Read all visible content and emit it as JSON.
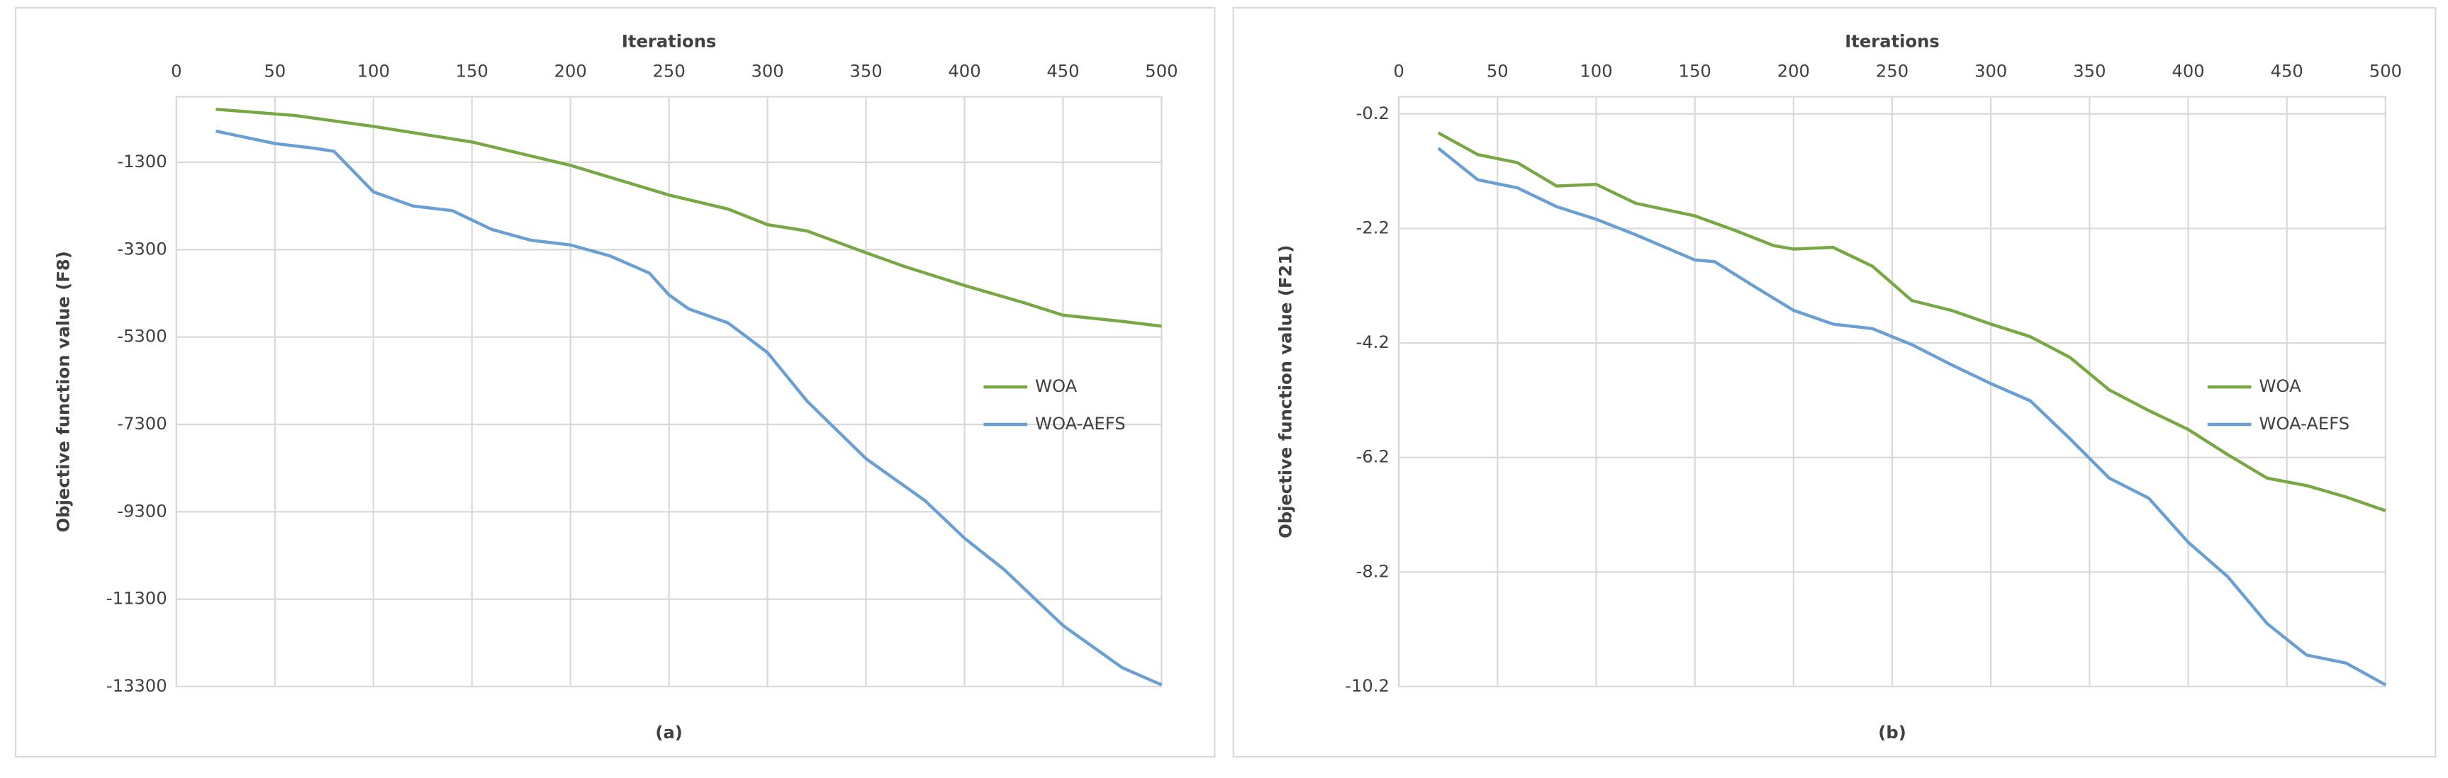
{
  "chart_data": [
    {
      "type": "line",
      "title": "Iterations",
      "ylabel": "Objective function value (F8)",
      "label": "(a)",
      "xlim": [
        0,
        500
      ],
      "xticks": [
        0,
        50,
        100,
        150,
        200,
        250,
        300,
        350,
        400,
        450,
        500
      ],
      "ylim": [
        -13300,
        200
      ],
      "yticks": [
        -1300,
        -3300,
        -5300,
        -7300,
        -9300,
        -11300,
        -13300
      ],
      "grid": true,
      "legend": "right",
      "series": [
        {
          "name": "WOA",
          "color": "#77a844",
          "x": [
            20,
            50,
            60,
            100,
            150,
            200,
            250,
            280,
            300,
            320,
            350,
            370,
            400,
            430,
            450,
            480,
            500
          ],
          "values": [
            -86,
            -193,
            -229,
            -479,
            -836,
            -1371,
            -2050,
            -2371,
            -2728,
            -2871,
            -3371,
            -3692,
            -4120,
            -4513,
            -4800,
            -4941,
            -5050
          ]
        },
        {
          "name": "WOA-AEFS",
          "color": "#6a9fd4",
          "x": [
            20,
            50,
            70,
            80,
            100,
            120,
            140,
            160,
            180,
            200,
            220,
            240,
            250,
            260,
            280,
            300,
            320,
            350,
            380,
            400,
            420,
            450,
            480,
            500
          ],
          "values": [
            -586,
            -871,
            -979,
            -1050,
            -1978,
            -2300,
            -2407,
            -2836,
            -3085,
            -3192,
            -3442,
            -3835,
            -4335,
            -4656,
            -4977,
            -5655,
            -6762,
            -8083,
            -9047,
            -9904,
            -10618,
            -11903,
            -12867,
            -13260
          ]
        }
      ]
    },
    {
      "type": "line",
      "title": "Iterations",
      "ylabel": "Objective function value (F21)",
      "label": "(b)",
      "xlim": [
        0,
        500
      ],
      "xticks": [
        0,
        50,
        100,
        150,
        200,
        250,
        300,
        350,
        400,
        450,
        500
      ],
      "ylim": [
        -10.2,
        0.1
      ],
      "yticks": [
        -0.2,
        -2.2,
        -4.2,
        -6.2,
        -8.2,
        -10.2
      ],
      "grid": true,
      "legend": "right",
      "series": [
        {
          "name": "WOA",
          "color": "#77a844",
          "x": [
            20,
            40,
            60,
            80,
            100,
            120,
            150,
            170,
            190,
            200,
            220,
            240,
            260,
            280,
            300,
            320,
            340,
            360,
            380,
            400,
            420,
            440,
            460,
            480,
            500
          ],
          "values": [
            -0.53,
            -0.91,
            -1.05,
            -1.46,
            -1.43,
            -1.76,
            -1.98,
            -2.23,
            -2.5,
            -2.56,
            -2.53,
            -2.86,
            -3.46,
            -3.63,
            -3.87,
            -4.09,
            -4.45,
            -5.02,
            -5.38,
            -5.71,
            -6.15,
            -6.56,
            -6.69,
            -6.89,
            -7.13
          ]
        },
        {
          "name": "WOA-AEFS",
          "color": "#6a9fd4",
          "x": [
            20,
            40,
            60,
            80,
            100,
            120,
            150,
            160,
            180,
            200,
            220,
            240,
            260,
            280,
            300,
            320,
            340,
            360,
            380,
            400,
            420,
            440,
            460,
            480,
            500
          ],
          "values": [
            -0.8,
            -1.35,
            -1.49,
            -1.82,
            -2.04,
            -2.31,
            -2.75,
            -2.78,
            -3.21,
            -3.63,
            -3.87,
            -3.95,
            -4.23,
            -4.58,
            -4.91,
            -5.21,
            -5.87,
            -6.56,
            -6.91,
            -7.68,
            -8.28,
            -9.1,
            -9.65,
            -9.79,
            -10.17
          ]
        }
      ]
    }
  ]
}
